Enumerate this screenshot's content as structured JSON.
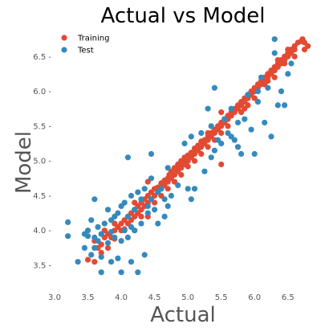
{
  "chart_data": {
    "type": "scatter",
    "title": "Actual vs Model",
    "xlabel": "Actual",
    "ylabel": "Model",
    "xlim": [
      3.0,
      6.9
    ],
    "ylim": [
      3.2,
      6.85
    ],
    "x_ticks": [
      "3.0",
      "3.5",
      "4.0",
      "4.5",
      "5.0",
      "5.5",
      "6.0",
      "6.5"
    ],
    "y_ticks": [
      "3.5 -",
      "4.0 -",
      "4.5 -",
      "5.0 -",
      "5.5 -",
      "6.0 -",
      "6.5 -"
    ],
    "grid": false,
    "legend": {
      "placement": "top-left",
      "entries": [
        "Training",
        "Test"
      ]
    },
    "series": [
      {
        "name": "Training",
        "color": "#E24A33",
        "points": [
          [
            3.5,
            3.58
          ],
          [
            3.6,
            3.55
          ],
          [
            3.6,
            3.85
          ],
          [
            3.65,
            3.75
          ],
          [
            3.7,
            3.8
          ],
          [
            3.7,
            3.68
          ],
          [
            3.75,
            3.9
          ],
          [
            3.8,
            3.95
          ],
          [
            3.8,
            3.75
          ],
          [
            3.85,
            3.9
          ],
          [
            3.9,
            4.0
          ],
          [
            3.9,
            3.88
          ],
          [
            3.95,
            4.05
          ],
          [
            4.0,
            4.0
          ],
          [
            4.0,
            4.1
          ],
          [
            4.05,
            4.02
          ],
          [
            4.05,
            4.15
          ],
          [
            4.1,
            4.1
          ],
          [
            4.1,
            4.2
          ],
          [
            4.15,
            4.15
          ],
          [
            4.15,
            4.25
          ],
          [
            4.2,
            4.2
          ],
          [
            4.2,
            4.3
          ],
          [
            4.25,
            4.25
          ],
          [
            4.25,
            4.35
          ],
          [
            4.3,
            4.3
          ],
          [
            4.3,
            4.4
          ],
          [
            4.35,
            4.35
          ],
          [
            4.35,
            4.45
          ],
          [
            4.4,
            4.4
          ],
          [
            4.4,
            4.5
          ],
          [
            4.45,
            4.45
          ],
          [
            4.45,
            4.55
          ],
          [
            4.5,
            4.5
          ],
          [
            4.5,
            4.6
          ],
          [
            4.55,
            4.55
          ],
          [
            4.55,
            4.62
          ],
          [
            4.6,
            4.6
          ],
          [
            4.6,
            4.68
          ],
          [
            4.65,
            4.65
          ],
          [
            4.65,
            4.72
          ],
          [
            4.7,
            4.7
          ],
          [
            4.7,
            4.75
          ],
          [
            4.72,
            4.8
          ],
          [
            4.75,
            4.75
          ],
          [
            4.75,
            4.85
          ],
          [
            4.78,
            4.82
          ],
          [
            4.8,
            4.8
          ],
          [
            4.8,
            4.9
          ],
          [
            4.82,
            4.86
          ],
          [
            4.85,
            4.85
          ],
          [
            4.85,
            4.95
          ],
          [
            4.88,
            4.9
          ],
          [
            4.9,
            4.9
          ],
          [
            4.9,
            5.0
          ],
          [
            4.92,
            4.95
          ],
          [
            4.95,
            4.95
          ],
          [
            4.95,
            5.05
          ],
          [
            4.98,
            5.0
          ],
          [
            5.0,
            5.0
          ],
          [
            5.0,
            5.08
          ],
          [
            5.02,
            5.05
          ],
          [
            5.05,
            5.05
          ],
          [
            5.05,
            5.12
          ],
          [
            5.08,
            5.1
          ],
          [
            5.1,
            5.1
          ],
          [
            5.1,
            5.18
          ],
          [
            5.12,
            5.15
          ],
          [
            5.15,
            5.15
          ],
          [
            5.15,
            5.22
          ],
          [
            5.18,
            5.2
          ],
          [
            5.2,
            5.2
          ],
          [
            5.2,
            5.28
          ],
          [
            5.25,
            5.25
          ],
          [
            5.25,
            5.3
          ],
          [
            5.3,
            5.3
          ],
          [
            5.3,
            5.35
          ],
          [
            5.35,
            5.35
          ],
          [
            5.35,
            5.4
          ],
          [
            5.4,
            5.4
          ],
          [
            5.4,
            5.45
          ],
          [
            5.45,
            5.45
          ],
          [
            5.45,
            5.5
          ],
          [
            5.5,
            5.5
          ],
          [
            5.5,
            5.55
          ],
          [
            5.55,
            5.55
          ],
          [
            5.55,
            5.6
          ],
          [
            5.6,
            5.6
          ],
          [
            5.6,
            5.65
          ],
          [
            5.65,
            5.65
          ],
          [
            5.65,
            5.7
          ],
          [
            5.7,
            5.7
          ],
          [
            5.7,
            5.75
          ],
          [
            5.75,
            5.75
          ],
          [
            5.75,
            5.8
          ],
          [
            5.8,
            5.8
          ],
          [
            5.8,
            5.85
          ],
          [
            5.85,
            5.85
          ],
          [
            5.85,
            5.9
          ],
          [
            5.9,
            5.9
          ],
          [
            5.9,
            5.95
          ],
          [
            5.95,
            5.95
          ],
          [
            5.95,
            6.0
          ],
          [
            6.0,
            6.0
          ],
          [
            6.0,
            6.05
          ],
          [
            6.05,
            6.05
          ],
          [
            6.05,
            6.1
          ],
          [
            6.1,
            6.1
          ],
          [
            6.1,
            6.15
          ],
          [
            6.15,
            6.15
          ],
          [
            6.15,
            6.2
          ],
          [
            6.2,
            6.2
          ],
          [
            6.2,
            6.25
          ],
          [
            6.25,
            6.25
          ],
          [
            6.25,
            6.3
          ],
          [
            6.3,
            6.3
          ],
          [
            6.3,
            6.35
          ],
          [
            6.35,
            6.35
          ],
          [
            6.35,
            6.4
          ],
          [
            6.4,
            6.4
          ],
          [
            6.4,
            6.45
          ],
          [
            6.45,
            6.45
          ],
          [
            6.45,
            6.5
          ],
          [
            6.5,
            6.5
          ],
          [
            6.5,
            6.55
          ],
          [
            6.55,
            6.55
          ],
          [
            6.55,
            6.6
          ],
          [
            6.6,
            6.6
          ],
          [
            6.6,
            6.65
          ],
          [
            6.65,
            6.7
          ],
          [
            6.7,
            6.72
          ],
          [
            6.72,
            6.75
          ],
          [
            6.75,
            6.7
          ],
          [
            6.8,
            6.65
          ],
          [
            6.75,
            6.6
          ],
          [
            6.6,
            6.5
          ],
          [
            6.2,
            6.15
          ],
          [
            6.3,
            6.2
          ],
          [
            5.9,
            5.8
          ],
          [
            5.85,
            5.75
          ],
          [
            5.5,
            5.4
          ],
          [
            5.3,
            5.2
          ],
          [
            5.2,
            5.1
          ],
          [
            4.9,
            4.8
          ],
          [
            4.7,
            4.6
          ],
          [
            4.5,
            4.4
          ],
          [
            4.3,
            4.2
          ],
          [
            4.2,
            4.4
          ],
          [
            4.4,
            4.2
          ],
          [
            4.6,
            4.5
          ],
          [
            5.0,
            4.92
          ],
          [
            5.1,
            5.0
          ],
          [
            5.3,
            5.4
          ],
          [
            5.6,
            5.5
          ],
          [
            5.8,
            5.7
          ],
          [
            6.0,
            5.9
          ],
          [
            6.15,
            6.1
          ],
          [
            6.35,
            6.45
          ],
          [
            6.45,
            6.4
          ],
          [
            6.5,
            6.6
          ],
          [
            5.5,
            5.7
          ],
          [
            5.4,
            5.3
          ],
          [
            4.8,
            4.7
          ],
          [
            5.5,
            4.95
          ],
          [
            4.4,
            4.7
          ],
          [
            4.2,
            4.0
          ],
          [
            3.9,
            4.1
          ],
          [
            3.75,
            4.0
          ],
          [
            5.75,
            5.2
          ],
          [
            6.05,
            5.85
          ]
        ]
      },
      {
        "name": "Test",
        "color": "#348ABD",
        "points": [
          [
            3.2,
            4.12
          ],
          [
            3.2,
            3.92
          ],
          [
            3.35,
            3.55
          ],
          [
            3.45,
            3.75
          ],
          [
            3.45,
            3.95
          ],
          [
            3.5,
            3.92
          ],
          [
            3.5,
            4.0
          ],
          [
            3.55,
            3.65
          ],
          [
            3.55,
            4.15
          ],
          [
            3.6,
            3.9
          ],
          [
            3.6,
            3.75
          ],
          [
            3.6,
            4.45
          ],
          [
            3.65,
            4.05
          ],
          [
            3.65,
            3.85
          ],
          [
            3.7,
            3.95
          ],
          [
            3.7,
            3.62
          ],
          [
            3.7,
            3.4
          ],
          [
            3.75,
            4.1
          ],
          [
            3.8,
            3.82
          ],
          [
            3.8,
            4.3
          ],
          [
            3.85,
            3.98
          ],
          [
            3.85,
            3.55
          ],
          [
            3.9,
            4.2
          ],
          [
            3.9,
            3.9
          ],
          [
            3.95,
            4.25
          ],
          [
            3.95,
            3.6
          ],
          [
            4.0,
            4.35
          ],
          [
            4.0,
            3.85
          ],
          [
            4.0,
            3.4
          ],
          [
            4.05,
            4.0
          ],
          [
            4.05,
            4.4
          ],
          [
            4.1,
            5.05
          ],
          [
            4.1,
            3.9
          ],
          [
            4.1,
            4.2
          ],
          [
            4.15,
            3.55
          ],
          [
            4.15,
            4.5
          ],
          [
            4.2,
            4.0
          ],
          [
            4.2,
            4.3
          ],
          [
            4.25,
            3.4
          ],
          [
            4.25,
            4.55
          ],
          [
            4.3,
            4.1
          ],
          [
            4.3,
            4.45
          ],
          [
            4.35,
            3.65
          ],
          [
            4.35,
            4.6
          ],
          [
            4.4,
            4.35
          ],
          [
            4.4,
            4.25
          ],
          [
            4.45,
            4.45
          ],
          [
            4.45,
            5.1
          ],
          [
            4.45,
            4.75
          ],
          [
            4.5,
            4.3
          ],
          [
            4.55,
            4.55
          ],
          [
            4.6,
            4.6
          ],
          [
            4.65,
            4.45
          ],
          [
            4.7,
            4.9
          ],
          [
            4.75,
            4.5
          ],
          [
            4.85,
            4.65
          ],
          [
            5.0,
            4.6
          ],
          [
            5.05,
            4.45
          ],
          [
            5.1,
            4.6
          ],
          [
            5.25,
            4.85
          ],
          [
            5.35,
            5.05
          ],
          [
            5.4,
            5.15
          ],
          [
            5.45,
            5.3
          ],
          [
            5.5,
            5.25
          ],
          [
            5.55,
            5.6
          ],
          [
            5.6,
            5.4
          ],
          [
            5.65,
            5.35
          ],
          [
            5.65,
            5.75
          ],
          [
            5.7,
            5.3
          ],
          [
            5.75,
            5.55
          ],
          [
            5.8,
            5.1
          ],
          [
            5.85,
            5.6
          ],
          [
            5.9,
            5.95
          ],
          [
            5.95,
            5.45
          ],
          [
            6.0,
            5.1
          ],
          [
            6.05,
            5.85
          ],
          [
            6.1,
            6.2
          ],
          [
            6.15,
            5.55
          ],
          [
            6.2,
            6.05
          ],
          [
            6.25,
            5.35
          ],
          [
            6.3,
            6.55
          ],
          [
            6.35,
            5.8
          ],
          [
            6.4,
            6.0
          ],
          [
            6.45,
            5.8
          ],
          [
            6.5,
            6.25
          ],
          [
            6.55,
            6.4
          ],
          [
            5.4,
            6.05
          ],
          [
            5.3,
            5.75
          ],
          [
            5.35,
            5.5
          ],
          [
            5.2,
            5.4
          ],
          [
            5.05,
            5.35
          ],
          [
            4.95,
            5.25
          ],
          [
            5.75,
            5.2
          ],
          [
            6.05,
            6.0
          ],
          [
            6.3,
            6.75
          ],
          [
            4.55,
            4.1
          ],
          [
            4.7,
            4.35
          ],
          [
            4.65,
            4.2
          ],
          [
            4.15,
            4.05
          ],
          [
            3.85,
            4.15
          ]
        ]
      }
    ]
  }
}
